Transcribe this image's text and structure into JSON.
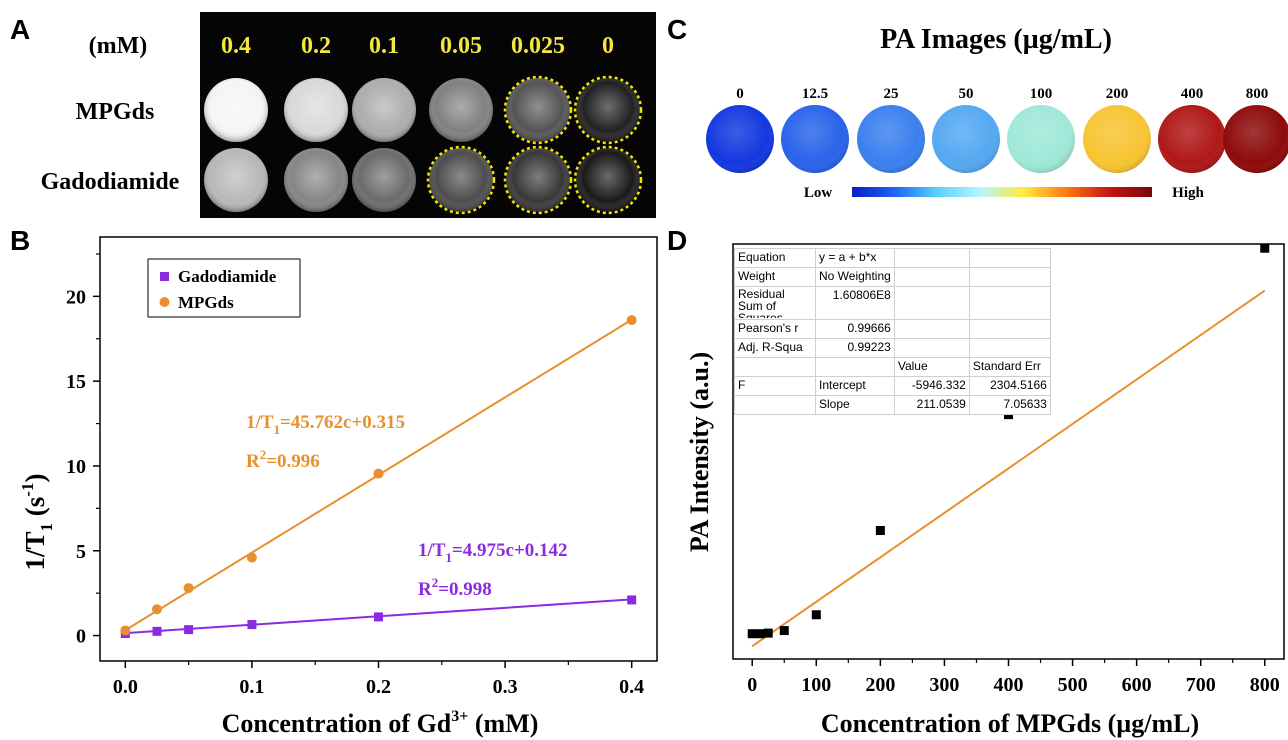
{
  "panels": {
    "a": "A",
    "b": "B",
    "c": "C",
    "d": "D"
  },
  "mri": {
    "unit_label": "(mM)",
    "concentrations": [
      "0.4",
      "0.2",
      "0.1",
      "0.05",
      "0.025",
      "0"
    ],
    "rows": [
      {
        "label": "MPGds",
        "brightness": [
          0.96,
          0.85,
          0.68,
          0.5,
          0.33,
          0.13
        ],
        "highlighted": [
          false,
          false,
          false,
          false,
          true,
          true
        ]
      },
      {
        "label": "Gadodiamide",
        "brightness": [
          0.72,
          0.52,
          0.42,
          0.3,
          0.22,
          0.1
        ],
        "highlighted": [
          false,
          false,
          false,
          true,
          true,
          true
        ]
      }
    ],
    "highlight_color": "#f2e600",
    "label_color": "#f5e642"
  },
  "pa_images": {
    "title": "PA Images (µg/mL)",
    "concentrations": [
      "0",
      "12.5",
      "25",
      "50",
      "100",
      "200",
      "400",
      "800"
    ],
    "colors": [
      "#1438e0",
      "#2a63ea",
      "#3a80ee",
      "#55a8f2",
      "#9fe8d8",
      "#f7c433",
      "#b01818",
      "#8e0b0b"
    ],
    "colorbar_low": "Low",
    "colorbar_high": "High",
    "colorbar_stops": [
      "#0a1ec8",
      "#1e64f0",
      "#5ad2ff",
      "#b4f5ff",
      "#ffec3c",
      "#ff7814",
      "#c81414",
      "#780a0a"
    ]
  },
  "chart_data": [
    {
      "type": "scatter",
      "panel": "B",
      "xlabel": "Concentration of Gd",
      "xlabel_sup": "3+",
      "xlabel_tail": " (mM)",
      "ylabel": "1/T",
      "ylabel_sub": "1",
      "ylabel_tail": " (s",
      "ylabel_sup": "-1",
      "ylabel_end": ")",
      "xlim": [
        -0.02,
        0.42
      ],
      "ylim": [
        -1.5,
        23.5
      ],
      "xticks": [
        "0.0",
        "0.1",
        "0.2",
        "0.3",
        "0.4"
      ],
      "xtick_values": [
        0,
        0.1,
        0.2,
        0.3,
        0.4
      ],
      "yticks": [
        "0",
        "5",
        "10",
        "15",
        "20"
      ],
      "ytick_values": [
        0,
        5,
        10,
        15,
        20
      ],
      "legend": "top-left",
      "series": [
        {
          "name": "Gadodiamide",
          "marker": "square",
          "color": "#8a2be2",
          "x": [
            0,
            0.025,
            0.05,
            0.1,
            0.2,
            0.4
          ],
          "y": [
            0.12,
            0.25,
            0.35,
            0.65,
            1.1,
            2.1
          ],
          "fit": {
            "slope": 4.975,
            "intercept": 0.142
          },
          "equation": {
            "main": "1/T",
            "sub": "1",
            "rest": "=4.975c+0.142"
          },
          "r2": {
            "main": "R",
            "sup": "2",
            "rest": "=0.998"
          }
        },
        {
          "name": "MPGds",
          "marker": "circle",
          "color": "#e8902e",
          "x": [
            0,
            0.025,
            0.05,
            0.1,
            0.2,
            0.4
          ],
          "y": [
            0.3,
            1.55,
            2.8,
            4.6,
            9.55,
            18.6
          ],
          "fit": {
            "slope": 45.762,
            "intercept": 0.315
          },
          "equation": {
            "main": "1/T",
            "sub": "1",
            "rest": "=45.762c+0.315"
          },
          "r2": {
            "main": "R",
            "sup": "2",
            "rest": "=0.996"
          }
        }
      ]
    },
    {
      "type": "scatter",
      "panel": "D",
      "xlabel": "Concentration of MPGds (µg/mL)",
      "ylabel": "PA Intensity (a.u.)",
      "xlim": [
        -30,
        830
      ],
      "ylim": [
        -12000,
        185000
      ],
      "xticks": [
        "0",
        "100",
        "200",
        "300",
        "400",
        "500",
        "600",
        "700",
        "800"
      ],
      "xtick_values": [
        0,
        100,
        200,
        300,
        400,
        500,
        600,
        700,
        800
      ],
      "series": [
        {
          "name": "",
          "marker": "square",
          "color": "#000000",
          "x": [
            0,
            12.5,
            25,
            50,
            100,
            200,
            400,
            800
          ],
          "y": [
            0,
            0,
            300,
            1500,
            9000,
            49000,
            104000,
            183000
          ],
          "fit": {
            "slope": 211.0539,
            "intercept": -5946.332,
            "color": "#e8902e"
          }
        }
      ],
      "fit_table": {
        "rows": [
          [
            "Equation",
            "y = a + b*x",
            "",
            ""
          ],
          [
            "Weight",
            "No Weighting",
            "",
            ""
          ],
          [
            "Residual\nSum of\nSquares",
            "1.60806E8",
            "",
            ""
          ],
          [
            "Pearson's r",
            "0.99666",
            "",
            ""
          ],
          [
            "Adj. R-Squa",
            "0.99223",
            "",
            ""
          ],
          [
            "",
            "",
            "Value",
            "Standard Err"
          ],
          [
            "F",
            "Intercept",
            "-5946.332",
            "2304.5166"
          ],
          [
            "",
            "Slope",
            "211.0539",
            "7.05633"
          ]
        ]
      }
    }
  ]
}
